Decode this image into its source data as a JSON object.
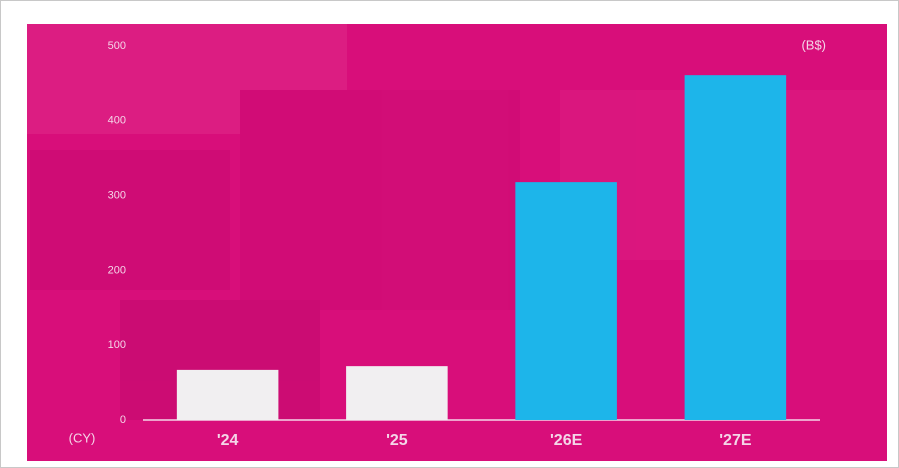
{
  "chart_data": {
    "type": "bar",
    "unit_label": "(B$)",
    "x_label": "(CY)",
    "categories": [
      "'24",
      "'25",
      "'26E",
      "'27E"
    ],
    "values": [
      67,
      72,
      318,
      461
    ],
    "colors": [
      "#f1eff1",
      "#f1eff1",
      "#1db5ea",
      "#1db5ea"
    ],
    "ylim": [
      0,
      500
    ],
    "yticks": [
      0,
      100,
      200,
      300,
      400,
      500
    ],
    "grid": false
  }
}
